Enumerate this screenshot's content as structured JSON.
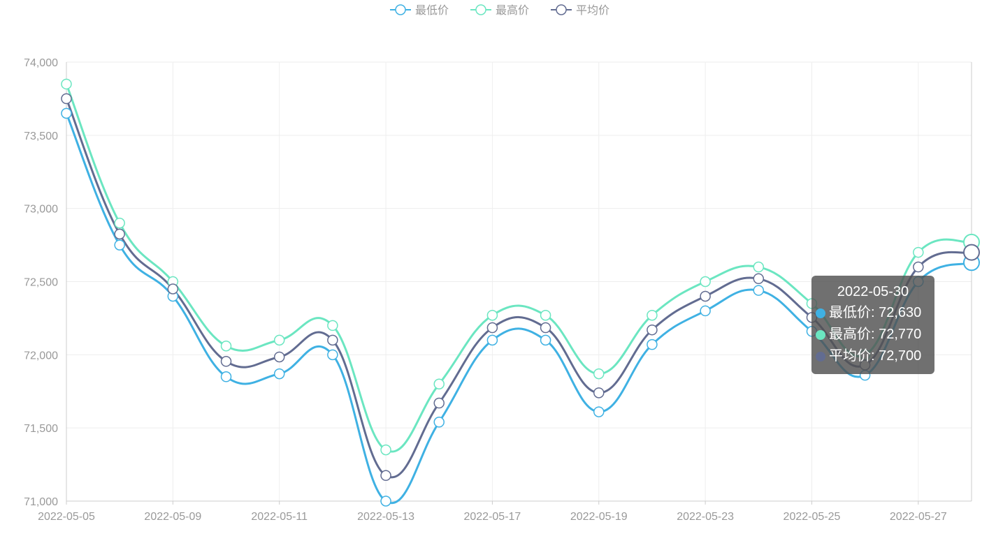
{
  "chart_data": {
    "type": "line",
    "smooth": true,
    "title": "",
    "xlabel": "",
    "ylabel": "",
    "x": [
      "2022-05-05",
      "2022-05-07",
      "2022-05-09",
      "2022-05-10",
      "2022-05-11",
      "2022-05-12",
      "2022-05-13",
      "2022-05-15",
      "2022-05-17",
      "2022-05-18",
      "2022-05-19",
      "2022-05-20",
      "2022-05-23",
      "2022-05-24",
      "2022-05-25",
      "2022-05-26",
      "2022-05-27",
      "2022-05-30"
    ],
    "x_tick_labels": [
      "2022-05-05",
      "2022-05-09",
      "2022-05-11",
      "2022-05-13",
      "2022-05-17",
      "2022-05-19",
      "2022-05-23",
      "2022-05-25",
      "2022-05-27"
    ],
    "ylim": [
      71000,
      74000
    ],
    "y_ticks": [
      71000,
      71500,
      72000,
      72500,
      73000,
      73500,
      74000
    ],
    "y_tick_labels": [
      "71,000",
      "71,500",
      "72,000",
      "72,500",
      "73,000",
      "73,500",
      "74,000"
    ],
    "grid": true,
    "legend_position": "top-center",
    "series": [
      {
        "name": "最低价",
        "color": "#3fb1e3",
        "values": [
          73650,
          72750,
          72400,
          71850,
          71870,
          72000,
          71000,
          71540,
          72100,
          72100,
          71610,
          72070,
          72300,
          72440,
          72160,
          71860,
          72500,
          72630
        ]
      },
      {
        "name": "最高价",
        "color": "#6be6c1",
        "values": [
          73850,
          72900,
          72500,
          72060,
          72100,
          72200,
          71350,
          71800,
          72270,
          72270,
          71870,
          72270,
          72500,
          72600,
          72350,
          72000,
          72700,
          72770
        ]
      },
      {
        "name": "平均价",
        "color": "#626c91",
        "values": [
          73750,
          72825,
          72450,
          71955,
          71985,
          72100,
          71175,
          71670,
          72185,
          72185,
          71740,
          72170,
          72400,
          72520,
          72255,
          71930,
          72600,
          72700
        ]
      }
    ],
    "tooltip": {
      "title": "2022-05-30",
      "rows": [
        {
          "label": "最低价: 72,630",
          "color": "#3fb1e3"
        },
        {
          "label": "最高价: 72,770",
          "color": "#6be6c1"
        },
        {
          "label": "平均价: 72,700",
          "color": "#626c91"
        }
      ]
    }
  }
}
